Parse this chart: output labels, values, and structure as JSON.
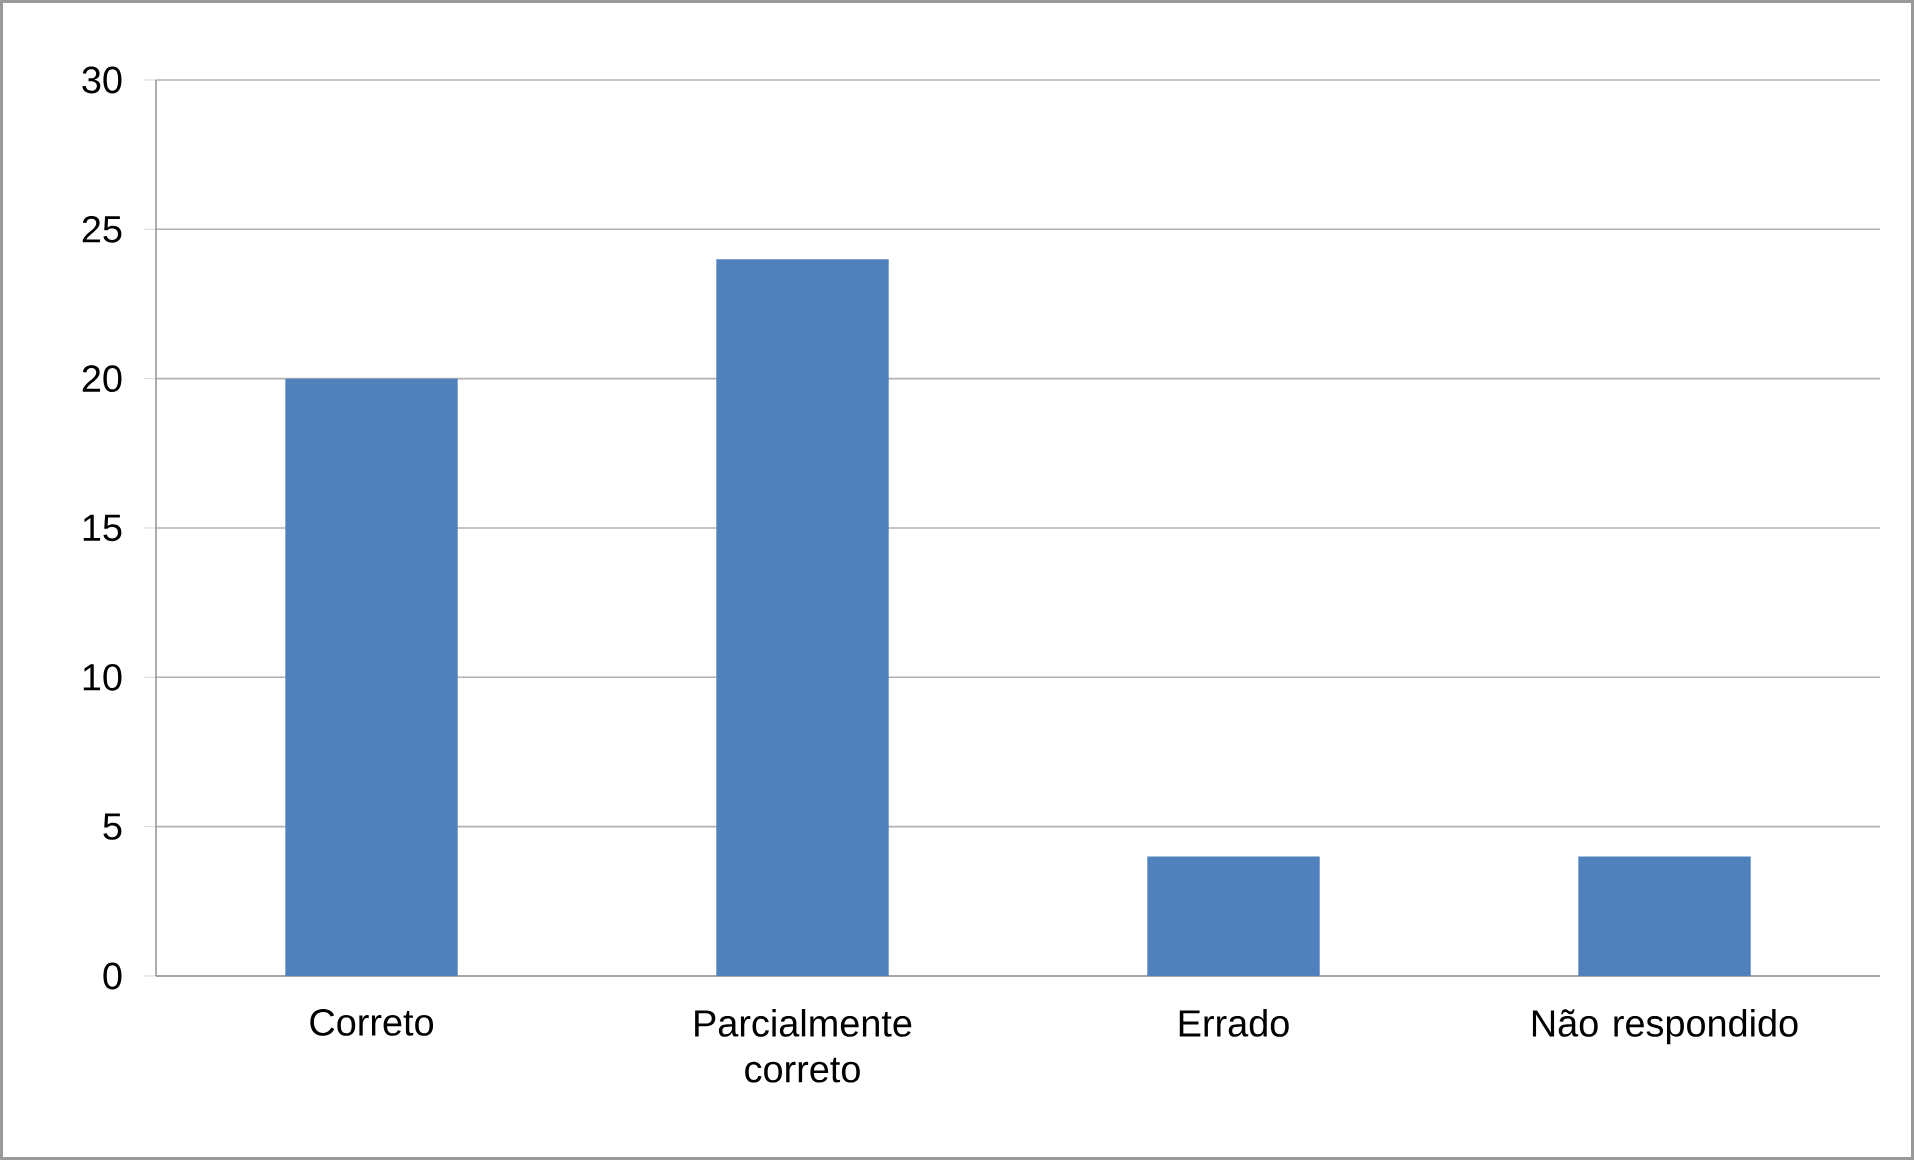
{
  "chart_data": {
    "type": "bar",
    "categories": [
      "Correto",
      "Parcialmente correto",
      "Errado",
      "Não respondido"
    ],
    "values": [
      20,
      24,
      4,
      4
    ],
    "color": "#4f81bd",
    "ylim": [
      0,
      30
    ],
    "yticks": [
      0,
      5,
      10,
      15,
      20,
      25,
      30
    ],
    "grid": "y"
  }
}
